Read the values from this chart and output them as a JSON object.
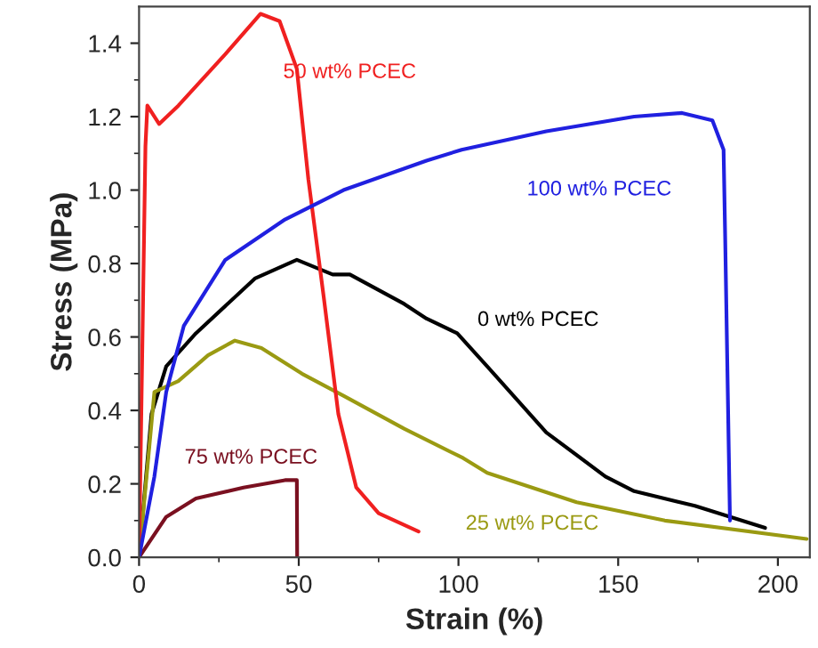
{
  "chart_data": {
    "type": "line",
    "xlabel": "Strain (%)",
    "ylabel": "Stress (MPa)",
    "xlim": [
      0,
      210
    ],
    "ylim": [
      0,
      1.5
    ],
    "xticks": [
      0,
      50,
      100,
      150,
      200
    ],
    "yticks": [
      {
        "value": 0,
        "label": "0.0"
      },
      {
        "value": 0.2,
        "label": "0.2"
      },
      {
        "value": 0.4,
        "label": "0.4"
      },
      {
        "value": 0.6,
        "label": "0.6"
      },
      {
        "value": 0.8,
        "label": "0.8"
      },
      {
        "value": 1.0,
        "label": "1.0"
      },
      {
        "value": 1.2,
        "label": "1.2"
      },
      {
        "value": 1.4,
        "label": "1.4"
      }
    ],
    "grid": false,
    "legend": false,
    "marker": "none",
    "line_style": "solid",
    "series": [
      {
        "name": "0 wt% PCEC",
        "color": "#000000",
        "x": [
          0,
          3.9,
          8.5,
          17.8,
          36.4,
          49.4,
          60.6,
          66,
          83,
          90,
          99.6,
          109,
          127.5,
          146,
          155,
          174,
          196
        ],
        "values": [
          0,
          0.39,
          0.52,
          0.61,
          0.76,
          0.81,
          0.77,
          0.77,
          0.69,
          0.65,
          0.61,
          0.52,
          0.34,
          0.22,
          0.18,
          0.14,
          0.08
        ]
      },
      {
        "name": "25 wt% PCEC",
        "color": "#9a9a12",
        "x": [
          0,
          4.8,
          12.3,
          21.6,
          30,
          38.3,
          51,
          64,
          83,
          101.5,
          109,
          137,
          164.6,
          209
        ],
        "values": [
          0,
          0.45,
          0.48,
          0.55,
          0.59,
          0.57,
          0.5,
          0.44,
          0.35,
          0.27,
          0.23,
          0.15,
          0.1,
          0.05
        ]
      },
      {
        "name": "50 wt% PCEC",
        "color": "#f02020",
        "x": [
          0,
          2,
          2.6,
          6.3,
          12.3,
          27,
          38,
          44,
          49.4,
          53,
          57.8,
          62.4,
          68,
          75,
          87.5
        ],
        "values": [
          0,
          1.12,
          1.23,
          1.18,
          1.23,
          1.37,
          1.48,
          1.46,
          1.33,
          1.03,
          0.71,
          0.39,
          0.19,
          0.12,
          0.07
        ]
      },
      {
        "name": "75 wt% PCEC",
        "color": "#7a1020",
        "x": [
          0,
          8.5,
          17.8,
          32.7,
          45.7,
          49.4,
          49.5
        ],
        "values": [
          0,
          0.11,
          0.16,
          0.19,
          0.21,
          0.21,
          0
        ]
      },
      {
        "name": "100 wt% PCEC",
        "color": "#2020e0",
        "x": [
          0,
          4.8,
          8.5,
          14,
          27,
          45.7,
          64,
          90,
          101,
          127.5,
          155,
          170,
          179.5,
          183,
          183.5,
          185
        ],
        "values": [
          0,
          0.22,
          0.45,
          0.63,
          0.81,
          0.92,
          1.0,
          1.08,
          1.11,
          1.16,
          1.2,
          1.21,
          1.19,
          1.11,
          0.87,
          0.1
        ]
      }
    ]
  }
}
